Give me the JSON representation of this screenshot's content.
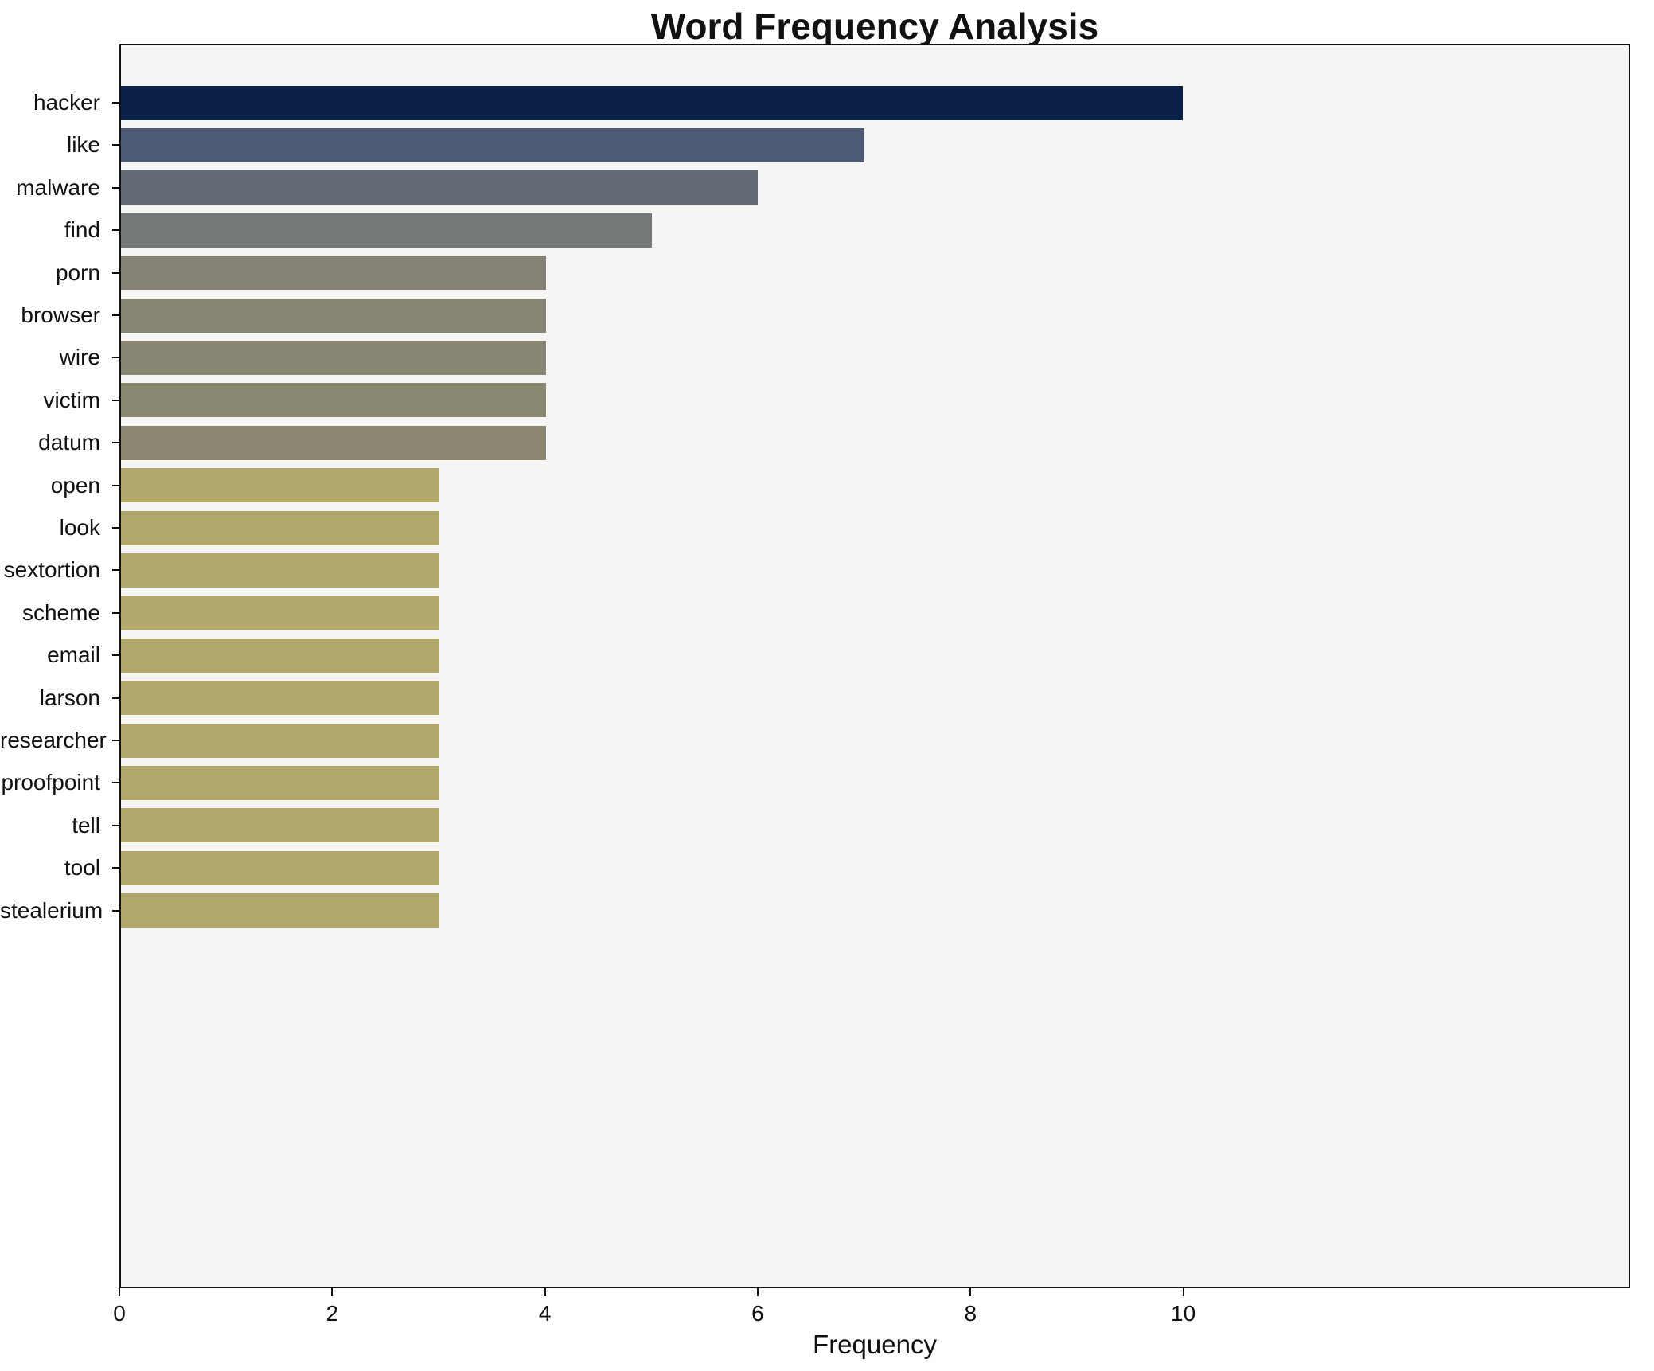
{
  "chart_data": {
    "type": "bar",
    "orientation": "horizontal",
    "title": "Word Frequency Analysis",
    "xlabel": "Frequency",
    "ylabel": "",
    "categories": [
      "hacker",
      "like",
      "malware",
      "find",
      "porn",
      "browser",
      "wire",
      "victim",
      "datum",
      "open",
      "look",
      "sextortion",
      "scheme",
      "email",
      "larson",
      "researcher",
      "proofpoint",
      "tell",
      "tool",
      "stealerium"
    ],
    "values": [
      10,
      7,
      6,
      5,
      4,
      4,
      4,
      4,
      4,
      3,
      3,
      3,
      3,
      3,
      3,
      3,
      3,
      3,
      3,
      3
    ],
    "colors": [
      "#0b2148",
      "#4e5a74",
      "#626a76",
      "#747877",
      "#868376",
      "#888576",
      "#898674",
      "#8a8773",
      "#8c8872",
      "#b3a86b",
      "#b3a86b",
      "#b3a86b",
      "#b3a86b",
      "#b3a86b",
      "#b3a86b",
      "#b3a86b",
      "#b3a86b",
      "#b3a86b",
      "#b3a86b",
      "#b3a86b"
    ],
    "xlim": [
      0,
      14.2
    ],
    "xticks": [
      0,
      2,
      4,
      6,
      8,
      10
    ],
    "grid": false,
    "legend": "none",
    "plot_background": "#f5f5f3",
    "figure_background": "#ffffff"
  }
}
